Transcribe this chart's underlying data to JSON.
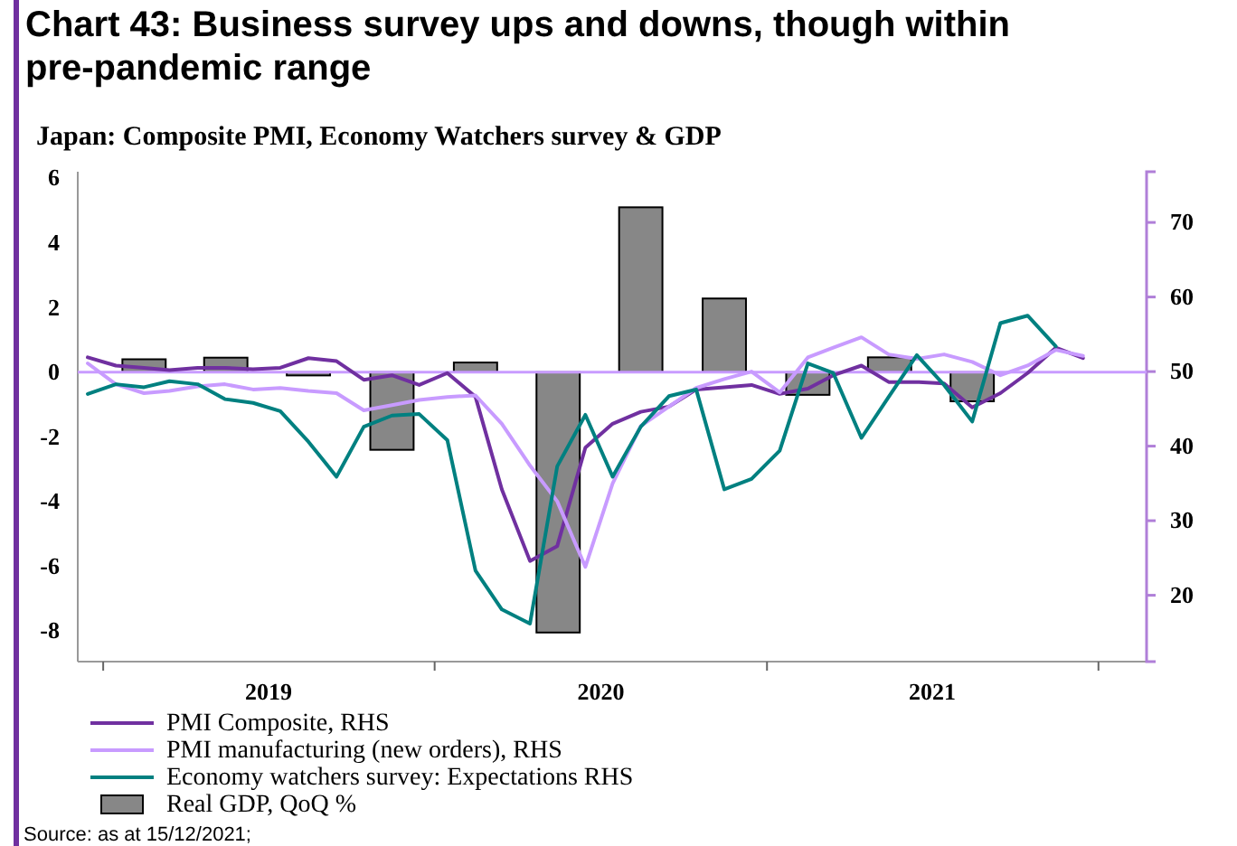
{
  "chart_data": {
    "type": "line",
    "title": "Chart 43: Business survey ups and downs, though within pre-pandemic range",
    "subtitle": "Japan: Composite PMI, Economy Watchers survey & GDP",
    "annotations": [
      "Source: as at 15/12/2021;"
    ],
    "xlim": [
      "2018-12-04",
      "2022-02-23"
    ],
    "xticks": [
      {
        "value": "2019-01-01",
        "label": null
      },
      {
        "value": "2019-07-02",
        "label": "2019"
      },
      {
        "value": "2020-01-01",
        "label": null
      },
      {
        "value": "2020-07-02",
        "label": "2020"
      },
      {
        "value": "2021-01-01",
        "label": null
      },
      {
        "value": "2021-07-02",
        "label": "2021"
      },
      {
        "value": "2022-01-01",
        "label": null
      }
    ],
    "ylim": [
      -8.95,
      6.2
    ],
    "yticks": [
      -8,
      -6,
      -4,
      -2,
      0,
      2,
      4,
      6
    ],
    "y2lim": [
      11.1,
      76.8
    ],
    "y2ticks": [
      20,
      30,
      40,
      50,
      60,
      70
    ],
    "ref_lines": [
      {
        "axis": "y",
        "value": 0,
        "color": "#c89bff"
      }
    ],
    "legend": "bottom",
    "grid": false,
    "series": [
      {
        "name": "PMI Composite, RHS",
        "axis": "y2",
        "color": "#7030a0",
        "x": [
          "2018-12-15",
          "2019-01-15",
          "2019-02-15",
          "2019-03-15",
          "2019-04-15",
          "2019-05-15",
          "2019-06-15",
          "2019-07-15",
          "2019-08-15",
          "2019-09-15",
          "2019-10-15",
          "2019-11-15",
          "2019-12-15",
          "2020-01-15",
          "2020-02-15",
          "2020-03-15",
          "2020-04-15",
          "2020-05-15",
          "2020-06-15",
          "2020-07-15",
          "2020-08-15",
          "2020-09-15",
          "2020-10-15",
          "2020-11-15",
          "2020-12-15",
          "2021-01-15",
          "2021-02-15",
          "2021-03-15",
          "2021-04-15",
          "2021-05-15",
          "2021-06-15",
          "2021-07-15",
          "2021-08-15",
          "2021-09-15",
          "2021-10-15",
          "2021-11-15",
          "2021-12-15"
        ],
        "values": [
          51.9,
          50.8,
          50.5,
          50.2,
          50.5,
          50.5,
          50.3,
          50.5,
          51.8,
          51.4,
          48.9,
          49.5,
          48.2,
          49.8,
          46.6,
          34.2,
          24.6,
          26.6,
          39.8,
          43,
          44.6,
          45.3,
          47.6,
          47.9,
          48.2,
          47,
          47.7,
          49.5,
          50.8,
          48.6,
          48.6,
          48.4,
          45.2,
          47.1,
          49.8,
          53.2,
          51.8
        ]
      },
      {
        "name": "PMI manufacturing (new orders), RHS",
        "axis": "y2",
        "color": "#c89bff",
        "x": [
          "2018-12-15",
          "2019-01-15",
          "2019-02-15",
          "2019-03-15",
          "2019-04-15",
          "2019-05-15",
          "2019-06-15",
          "2019-07-15",
          "2019-08-15",
          "2019-09-15",
          "2019-10-15",
          "2019-11-15",
          "2019-12-15",
          "2020-01-15",
          "2020-02-15",
          "2020-03-15",
          "2020-04-15",
          "2020-05-15",
          "2020-06-15",
          "2020-07-15",
          "2020-08-15",
          "2020-09-15",
          "2020-10-15",
          "2020-11-15",
          "2020-12-15",
          "2021-01-15",
          "2021-02-15",
          "2021-03-15",
          "2021-04-15",
          "2021-05-15",
          "2021-06-15",
          "2021-07-15",
          "2021-08-15",
          "2021-09-15",
          "2021-10-15",
          "2021-11-15",
          "2021-12-15"
        ],
        "values": [
          51.1,
          48.3,
          47.1,
          47.4,
          48,
          48.3,
          47.6,
          47.8,
          47.4,
          47.1,
          44.8,
          45.5,
          46.2,
          46.6,
          46.8,
          43,
          37.4,
          32.6,
          23.8,
          35,
          42.7,
          45.3,
          47.8,
          49,
          50,
          47.2,
          51.9,
          53.2,
          54.6,
          52.3,
          51.7,
          52.3,
          51.3,
          49.5,
          50.8,
          52.9,
          52.1
        ]
      },
      {
        "name": "Economy watchers survey: Expectations RHS",
        "axis": "y2",
        "color": "#008080",
        "x": [
          "2018-12-15",
          "2019-01-15",
          "2019-02-15",
          "2019-03-15",
          "2019-04-15",
          "2019-05-15",
          "2019-06-15",
          "2019-07-15",
          "2019-08-15",
          "2019-09-15",
          "2019-10-15",
          "2019-11-15",
          "2019-12-15",
          "2020-01-15",
          "2020-02-15",
          "2020-03-15",
          "2020-04-15",
          "2020-05-15",
          "2020-06-15",
          "2020-07-15",
          "2020-08-15",
          "2020-09-15",
          "2020-10-15",
          "2020-11-15",
          "2020-12-15",
          "2021-01-15",
          "2021-02-15",
          "2021-03-15",
          "2021-04-15",
          "2021-05-15",
          "2021-06-15",
          "2021-07-15",
          "2021-08-15",
          "2021-09-15",
          "2021-10-15",
          "2021-11-15"
        ],
        "values": [
          47,
          48.3,
          47.9,
          48.7,
          48.3,
          46.3,
          45.8,
          44.7,
          40.6,
          35.9,
          42.6,
          44.1,
          44.3,
          40.8,
          23.3,
          18.1,
          16.2,
          37.3,
          44.2,
          35.9,
          42.6,
          46.7,
          47.6,
          34.2,
          35.6,
          39.4,
          51.1,
          49.8,
          41.1,
          46.6,
          52.2,
          48.2,
          43.3,
          56.5,
          57.5,
          53.4
        ]
      },
      {
        "name": "Real GDP, QoQ %",
        "type": "bar",
        "color": "#878787",
        "x": [
          "2019-02-15",
          "2019-05-16",
          "2019-08-15",
          "2019-11-15",
          "2020-02-15",
          "2020-05-16",
          "2020-08-15",
          "2020-11-15",
          "2021-02-15",
          "2021-05-16",
          "2021-08-15"
        ],
        "values": [
          0.4,
          0.45,
          -0.1,
          -2.4,
          0.3,
          -8.05,
          5.1,
          2.28,
          -0.7,
          0.46,
          -0.9
        ]
      }
    ]
  }
}
